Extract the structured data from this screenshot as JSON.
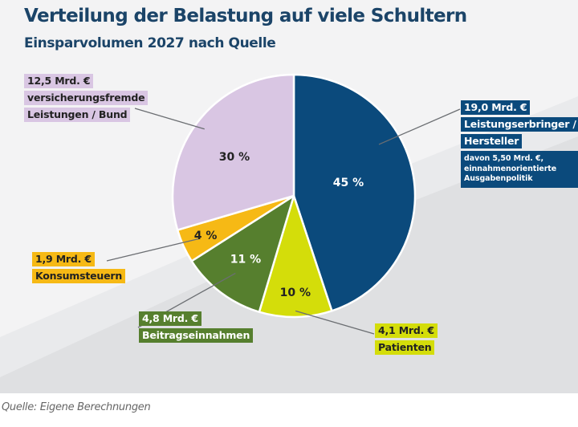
{
  "chart_data": {
    "type": "pie",
    "title": "Verteilung der Belastung auf viele Schultern",
    "subtitle": "Einsparvolumen 2027 nach Quelle",
    "unit": "Mrd. €",
    "start_angle": "12 o'clock",
    "direction": "clockwise",
    "slices": [
      {
        "key": "leistungserbringer",
        "value": 19.0,
        "percent_label": "45 %",
        "color": "#0b4a7c",
        "percent_text_color": "#ffffff",
        "amount_label": "19,0 Mrd. €",
        "category_lines": [
          "Leistungserbringer /",
          "Hersteller"
        ],
        "note": [
          "davon 5,50 Mrd. €,",
          "einnahmenorientierte",
          "Ausgabenpolitik"
        ],
        "label_bg": "#0b4a7c",
        "label_text_color": "#ffffff"
      },
      {
        "key": "patienten",
        "value": 4.1,
        "percent_label": "10 %",
        "color": "#d4dd0a",
        "percent_text_color": "#222222",
        "amount_label": "4,1 Mrd. €",
        "category_lines": [
          "Patienten"
        ],
        "label_bg": "#d4dd0a",
        "label_text_color": "#222222"
      },
      {
        "key": "beitragseinnahmen",
        "value": 4.8,
        "percent_label": "11 %",
        "color": "#567f2e",
        "percent_text_color": "#ffffff",
        "amount_label": "4,8 Mrd. €",
        "category_lines": [
          "Beitragseinnahmen"
        ],
        "label_bg": "#567f2e",
        "label_text_color": "#ffffff"
      },
      {
        "key": "konsumsteuern",
        "value": 1.9,
        "percent_label": "4 %",
        "color": "#f6b915",
        "percent_text_color": "#222222",
        "amount_label": "1,9 Mrd. €",
        "category_lines": [
          "Konsumsteuern"
        ],
        "label_bg": "#f6b915",
        "label_text_color": "#222222"
      },
      {
        "key": "versicherungsfremde",
        "value": 12.5,
        "percent_label": "30 %",
        "color": "#d9c6e3",
        "percent_text_color": "#222222",
        "amount_label": "12,5 Mrd. €",
        "category_lines": [
          "versicherungsfremde",
          "Leistungen / Bund"
        ],
        "label_bg": "#d9c6e3",
        "label_text_color": "#222222"
      }
    ],
    "source": "Quelle: Eigene Berechnungen"
  }
}
